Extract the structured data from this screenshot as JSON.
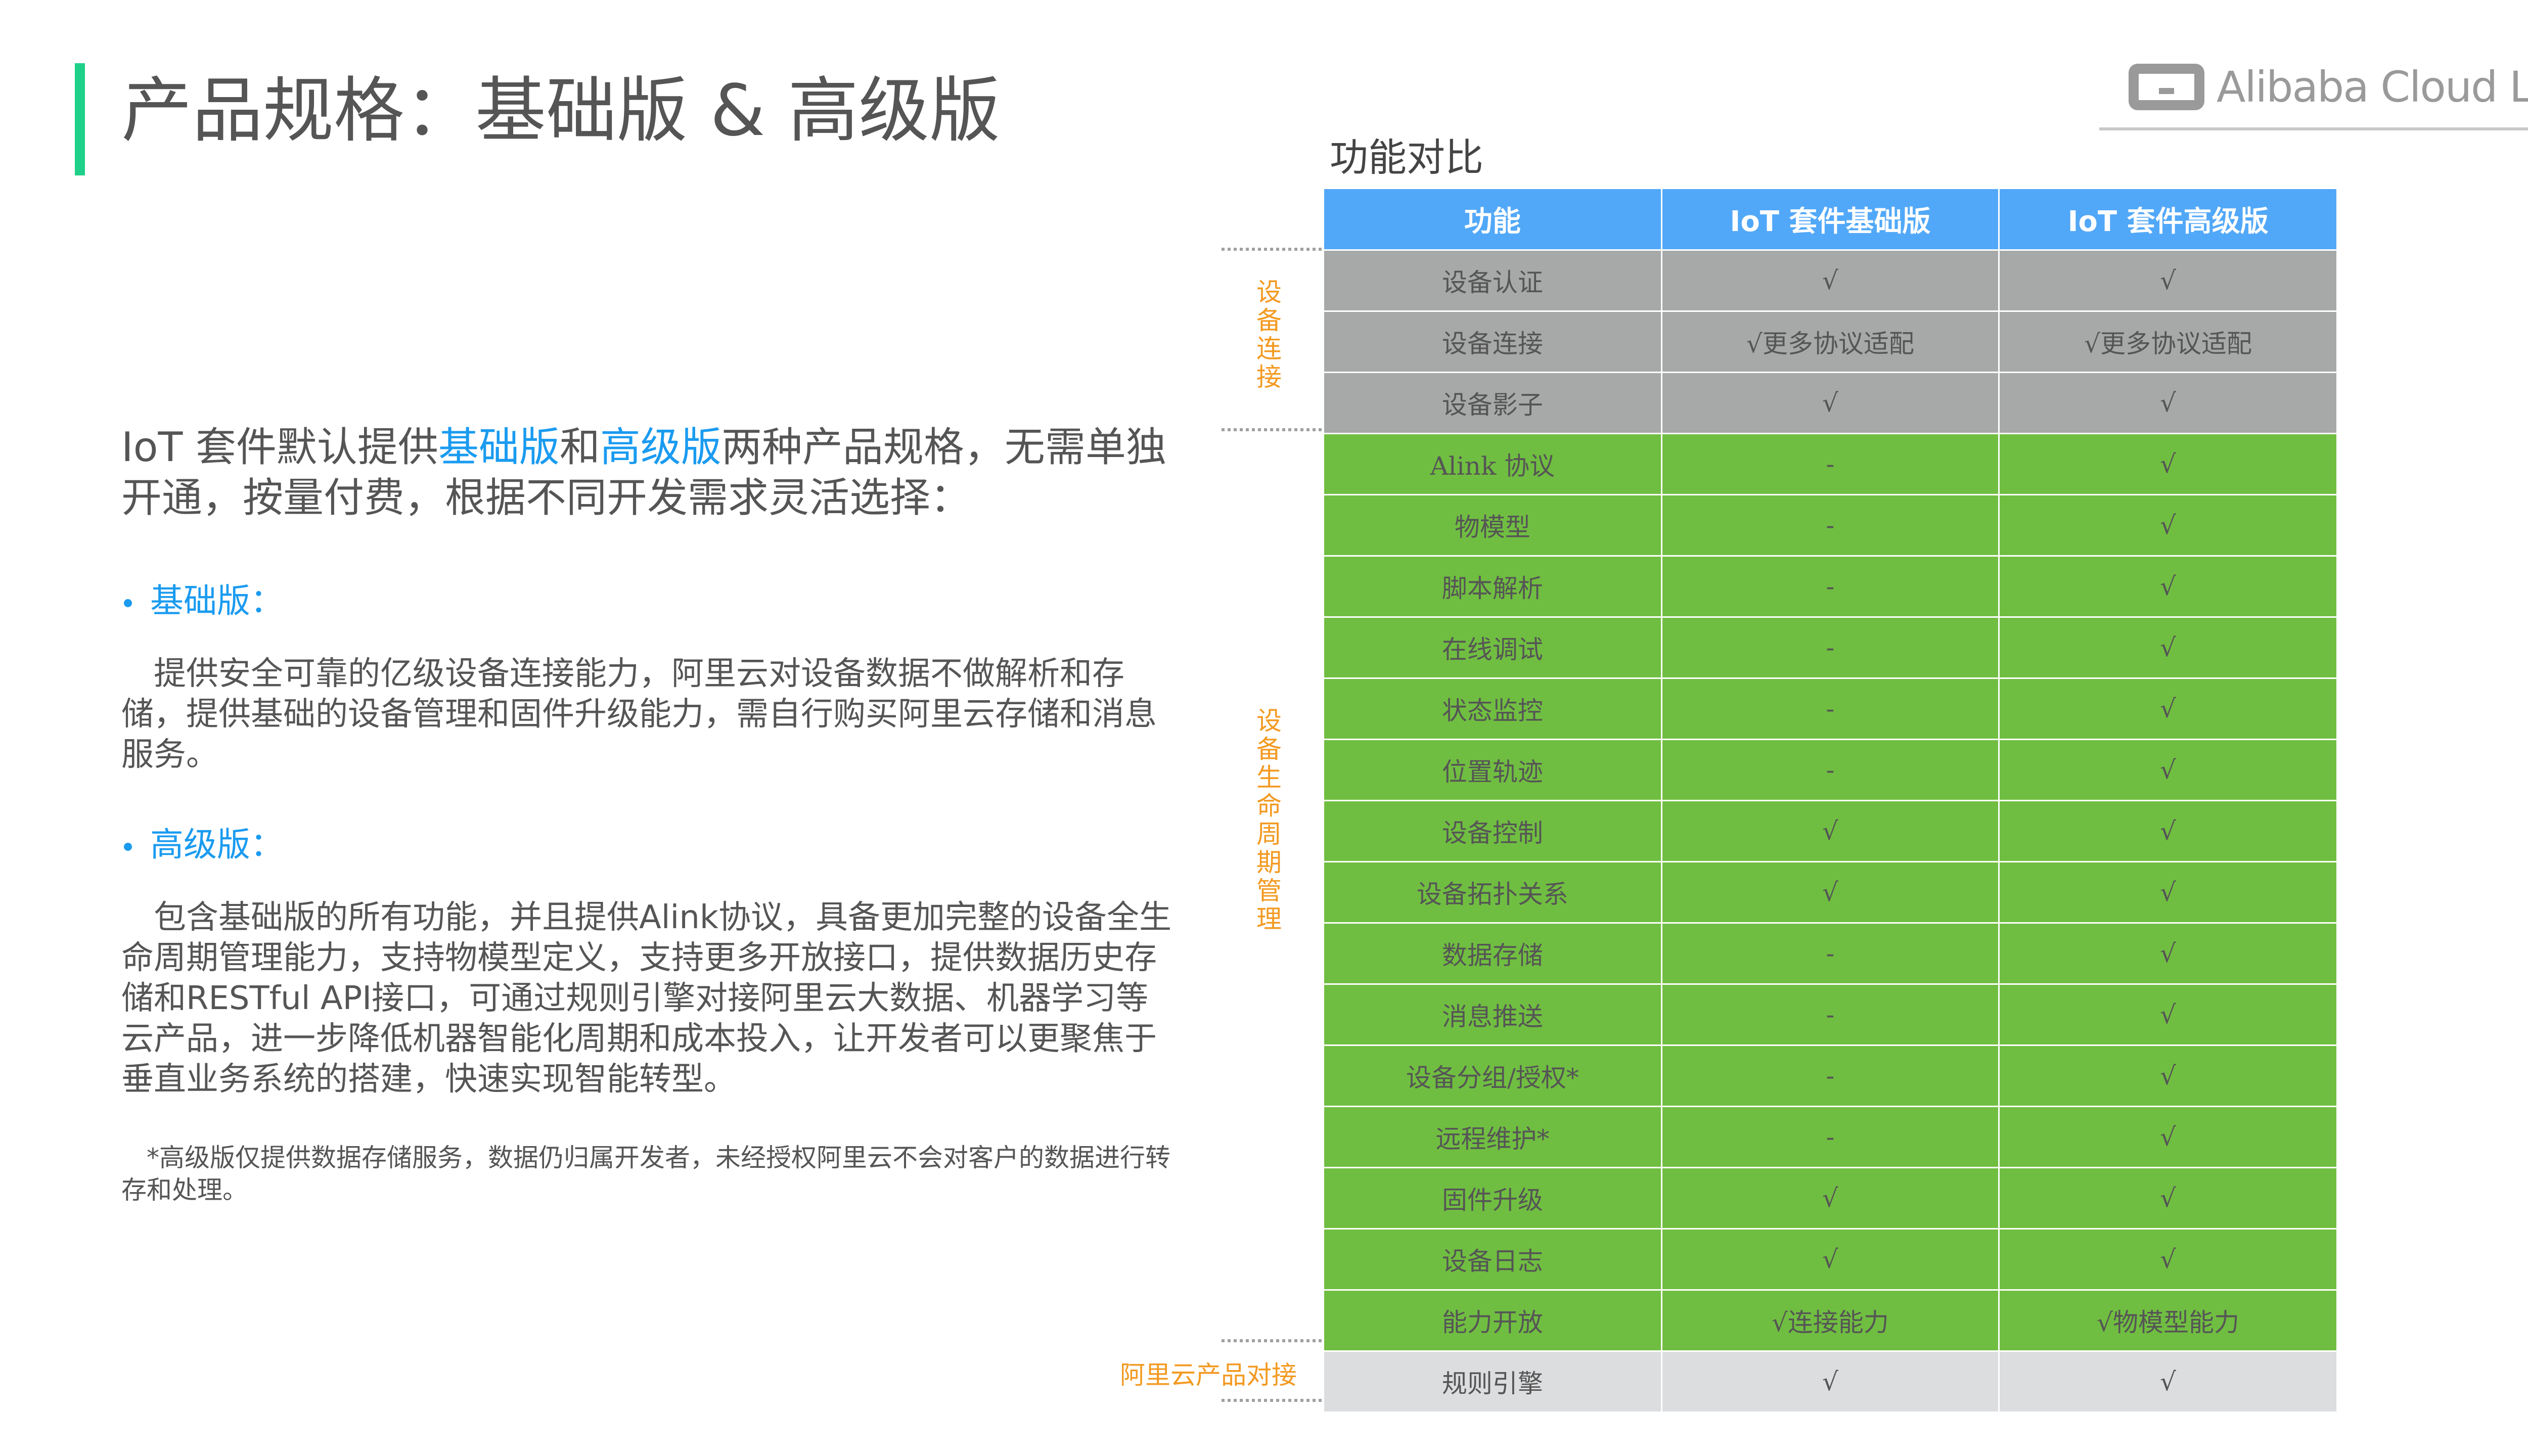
{
  "header": {
    "title": "产品规格：基础版 & 高级版",
    "logo_text": "Alibaba Cloud Link",
    "accent_color": "#1fd08a"
  },
  "left": {
    "intro_pre": "IoT 套件默认提供",
    "intro_basic": "基础版",
    "intro_and": "和",
    "intro_adv": "高级版",
    "intro_post": "两种产品规格，无需单独开通，按量付费，根据不同开发需求灵活选择：",
    "bullet1": "基础版：",
    "para1": "提供安全可靠的亿级设备连接能力，阿里云对设备数据不做解析和存储，提供基础的设备管理和固件升级能力，需自行购买阿里云存储和消息服务。",
    "bullet2": "高级版：",
    "para2": "包含基础版的所有功能，并且提供Alink协议，具备更加完整的设备全生命周期管理能力，支持物模型定义，支持更多开放接口，提供数据历史存储和RESTful API接口，可通过规则引擎对接阿里云大数据、机器学习等云产品，进一步降低机器智能化周期和成本投入，让开发者可以更聚焦于垂直业务系统的搭建，快速实现智能转型。",
    "footnote": "*高级版仅提供数据存储服务，数据仍归属开发者，未经授权阿里云不会对客户的数据进行转存和处理。",
    "highlight_color": "#1a9bf0"
  },
  "compare": {
    "title": "功能对比",
    "headers": [
      "功能",
      "IoT 套件基础版",
      "IoT 套件高级版"
    ],
    "groups": [
      "设备连接",
      "设备生命周期管理",
      "阿里云产品对接"
    ],
    "rows": [
      [
        "设备认证",
        "√",
        "√"
      ],
      [
        "设备连接",
        "√更多协议适配",
        "√更多协议适配"
      ],
      [
        "设备影子",
        "√",
        "√"
      ],
      [
        "Alink 协议",
        "-",
        "√"
      ],
      [
        "物模型",
        "-",
        "√"
      ],
      [
        "脚本解析",
        "-",
        "√"
      ],
      [
        "在线调试",
        "-",
        "√"
      ],
      [
        "状态监控",
        "-",
        "√"
      ],
      [
        "位置轨迹",
        "-",
        "√"
      ],
      [
        "设备控制",
        "√",
        "√"
      ],
      [
        "设备拓扑关系",
        "√",
        "√"
      ],
      [
        "数据存储",
        "-",
        "√"
      ],
      [
        "消息推送",
        "-",
        "√"
      ],
      [
        "设备分组/授权*",
        "-",
        "√"
      ],
      [
        "远程维护*",
        "-",
        "√"
      ],
      [
        "固件升级",
        "√",
        "√"
      ],
      [
        "设备日志",
        "√",
        "√"
      ],
      [
        "能力开放",
        "√连接能力",
        "√物模型能力"
      ],
      [
        "规则引擎",
        "√",
        "√"
      ]
    ],
    "colors": {
      "header": "#52a8f8",
      "group1": "#a6a9a8",
      "group2": "#70be41",
      "group3": "#dcdddf",
      "group_label": "#f39a22"
    }
  }
}
